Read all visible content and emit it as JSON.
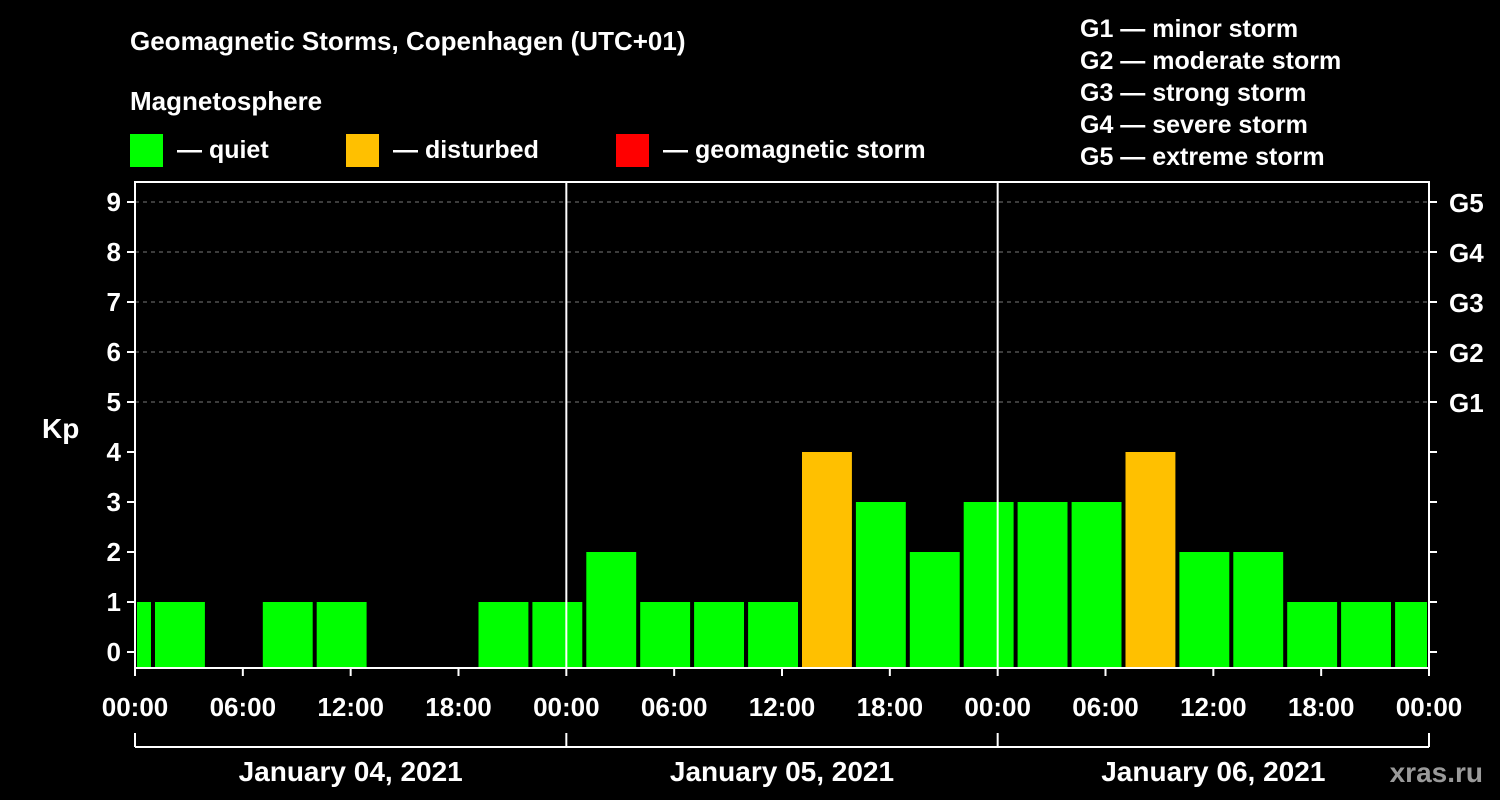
{
  "title": "Geomagnetic Storms, Copenhagen (UTC+01)",
  "magnetosphere_label": "Magnetosphere",
  "legend": [
    {
      "label": "— quiet",
      "color": "#00ff00"
    },
    {
      "label": "— disturbed",
      "color": "#ffc000"
    },
    {
      "label": "— geomagnetic storm",
      "color": "#ff0000"
    }
  ],
  "storm_scale": [
    "G1 — minor storm",
    "G2 — moderate storm",
    "G3 — strong storm",
    "G4 — severe storm",
    "G5 — extreme storm"
  ],
  "watermark": "xras.ru",
  "chart_data": {
    "type": "bar",
    "ylabel": "Kp",
    "ylim": [
      0,
      9
    ],
    "y_ticks": [
      "0",
      "1",
      "2",
      "3",
      "4",
      "5",
      "6",
      "7",
      "8",
      "9"
    ],
    "right_axis_labels": [
      {
        "kp": 5,
        "label": "G1"
      },
      {
        "kp": 6,
        "label": "G2"
      },
      {
        "kp": 7,
        "label": "G3"
      },
      {
        "kp": 8,
        "label": "G4"
      },
      {
        "kp": 9,
        "label": "G5"
      }
    ],
    "x_range_hours": [
      0,
      72
    ],
    "x_tick_labels": [
      "00:00",
      "06:00",
      "12:00",
      "18:00",
      "00:00",
      "06:00",
      "12:00",
      "18:00",
      "00:00",
      "06:00",
      "12:00",
      "18:00",
      "00:00"
    ],
    "days": [
      "January 04, 2021",
      "January 05, 2021",
      "January 06, 2021"
    ],
    "bars": [
      {
        "start_h": 0,
        "end_h": 1,
        "kp": 1,
        "status": "quiet"
      },
      {
        "start_h": 1,
        "end_h": 4,
        "kp": 1,
        "status": "quiet"
      },
      {
        "start_h": 4,
        "end_h": 7,
        "kp": 0,
        "status": "quiet"
      },
      {
        "start_h": 7,
        "end_h": 10,
        "kp": 1,
        "status": "quiet"
      },
      {
        "start_h": 10,
        "end_h": 13,
        "kp": 1,
        "status": "quiet"
      },
      {
        "start_h": 13,
        "end_h": 16,
        "kp": 0,
        "status": "quiet"
      },
      {
        "start_h": 16,
        "end_h": 19,
        "kp": 0,
        "status": "quiet"
      },
      {
        "start_h": 19,
        "end_h": 22,
        "kp": 1,
        "status": "quiet"
      },
      {
        "start_h": 22,
        "end_h": 25,
        "kp": 1,
        "status": "quiet"
      },
      {
        "start_h": 25,
        "end_h": 28,
        "kp": 2,
        "status": "quiet"
      },
      {
        "start_h": 28,
        "end_h": 31,
        "kp": 1,
        "status": "quiet"
      },
      {
        "start_h": 31,
        "end_h": 34,
        "kp": 1,
        "status": "quiet"
      },
      {
        "start_h": 34,
        "end_h": 37,
        "kp": 1,
        "status": "quiet"
      },
      {
        "start_h": 37,
        "end_h": 40,
        "kp": 4,
        "status": "disturbed"
      },
      {
        "start_h": 40,
        "end_h": 43,
        "kp": 3,
        "status": "quiet"
      },
      {
        "start_h": 43,
        "end_h": 46,
        "kp": 2,
        "status": "quiet"
      },
      {
        "start_h": 46,
        "end_h": 49,
        "kp": 3,
        "status": "quiet"
      },
      {
        "start_h": 49,
        "end_h": 52,
        "kp": 3,
        "status": "quiet"
      },
      {
        "start_h": 52,
        "end_h": 55,
        "kp": 3,
        "status": "quiet"
      },
      {
        "start_h": 55,
        "end_h": 58,
        "kp": 4,
        "status": "disturbed"
      },
      {
        "start_h": 58,
        "end_h": 61,
        "kp": 2,
        "status": "quiet"
      },
      {
        "start_h": 61,
        "end_h": 64,
        "kp": 2,
        "status": "quiet"
      },
      {
        "start_h": 64,
        "end_h": 67,
        "kp": 1,
        "status": "quiet"
      },
      {
        "start_h": 67,
        "end_h": 70,
        "kp": 1,
        "status": "quiet"
      },
      {
        "start_h": 70,
        "end_h": 72,
        "kp": 1,
        "status": "quiet"
      }
    ],
    "status_colors": {
      "quiet": "#00ff00",
      "disturbed": "#ffc000",
      "storm": "#ff0000"
    }
  }
}
